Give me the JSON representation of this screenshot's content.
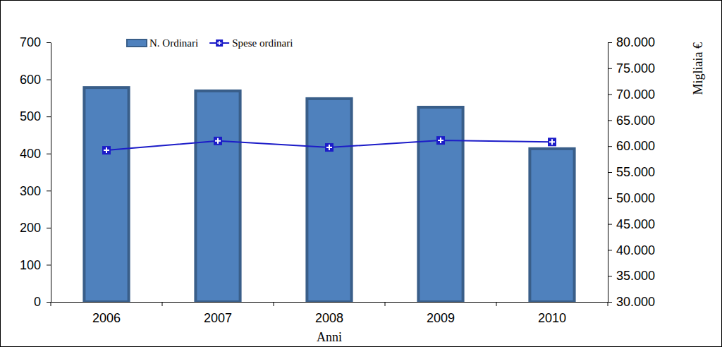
{
  "chart_data": {
    "type": "bar",
    "x_label": "Anni",
    "y2_label": "Migliaia €",
    "categories": [
      "2006",
      "2007",
      "2008",
      "2009",
      "2010"
    ],
    "series": [
      {
        "name": "N. Ordinari",
        "type": "bar",
        "color": "#4f81bd",
        "values": [
          578,
          569,
          548,
          525,
          413
        ]
      },
      {
        "name": "Spese ordinari",
        "type": "line",
        "axis": "y2",
        "color": "#1c1cc8",
        "marker": "square",
        "values": [
          59200,
          61000,
          59750,
          61100,
          60800
        ]
      }
    ],
    "ylim": [
      0,
      700
    ],
    "yticks": [
      0,
      100,
      200,
      300,
      400,
      500,
      600,
      700
    ],
    "y2lim": [
      30000,
      80000
    ],
    "y2ticks": [
      {
        "value": 30000,
        "label": "30.000"
      },
      {
        "value": 35000,
        "label": "35.000"
      },
      {
        "value": 40000,
        "label": "40.000"
      },
      {
        "value": 45000,
        "label": "45.000"
      },
      {
        "value": 50000,
        "label": "50.000"
      },
      {
        "value": 55000,
        "label": "55.000"
      },
      {
        "value": 60000,
        "label": "60.000"
      },
      {
        "value": 65000,
        "label": "65.000"
      },
      {
        "value": 70000,
        "label": "70.000"
      },
      {
        "value": 75000,
        "label": "75.000"
      },
      {
        "value": 80000,
        "label": "80.000"
      }
    ],
    "legend": "top"
  }
}
